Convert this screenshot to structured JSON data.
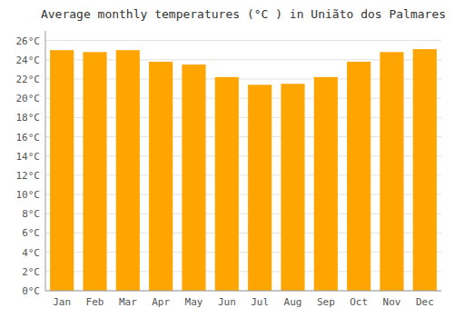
{
  "chart_data": {
    "type": "bar",
    "title": "Average monthly temperatures (°C ) in Uniãto dos Palmares",
    "categories": [
      "Jan",
      "Feb",
      "Mar",
      "Apr",
      "May",
      "Jun",
      "Jul",
      "Aug",
      "Sep",
      "Oct",
      "Nov",
      "Dec"
    ],
    "values": [
      25.0,
      24.8,
      25.0,
      23.8,
      23.5,
      22.2,
      21.4,
      21.5,
      22.2,
      23.8,
      24.8,
      25.1
    ],
    "color": "#FFA500",
    "ylim": [
      0,
      27
    ],
    "yticks": [
      {
        "value": 0,
        "label": "0°C"
      },
      {
        "value": 2,
        "label": "2°C"
      },
      {
        "value": 4,
        "label": "4°C"
      },
      {
        "value": 6,
        "label": "6°C"
      },
      {
        "value": 8,
        "label": "8°C"
      },
      {
        "value": 10,
        "label": "10°C"
      },
      {
        "value": 12,
        "label": "12°C"
      },
      {
        "value": 14,
        "label": "14°C"
      },
      {
        "value": 16,
        "label": "16°C"
      },
      {
        "value": 18,
        "label": "18°C"
      },
      {
        "value": 20,
        "label": "20°C"
      },
      {
        "value": 22,
        "label": "22°C"
      },
      {
        "value": 24,
        "label": "24°C"
      },
      {
        "value": 26,
        "label": "26°C"
      }
    ],
    "grid": true
  }
}
